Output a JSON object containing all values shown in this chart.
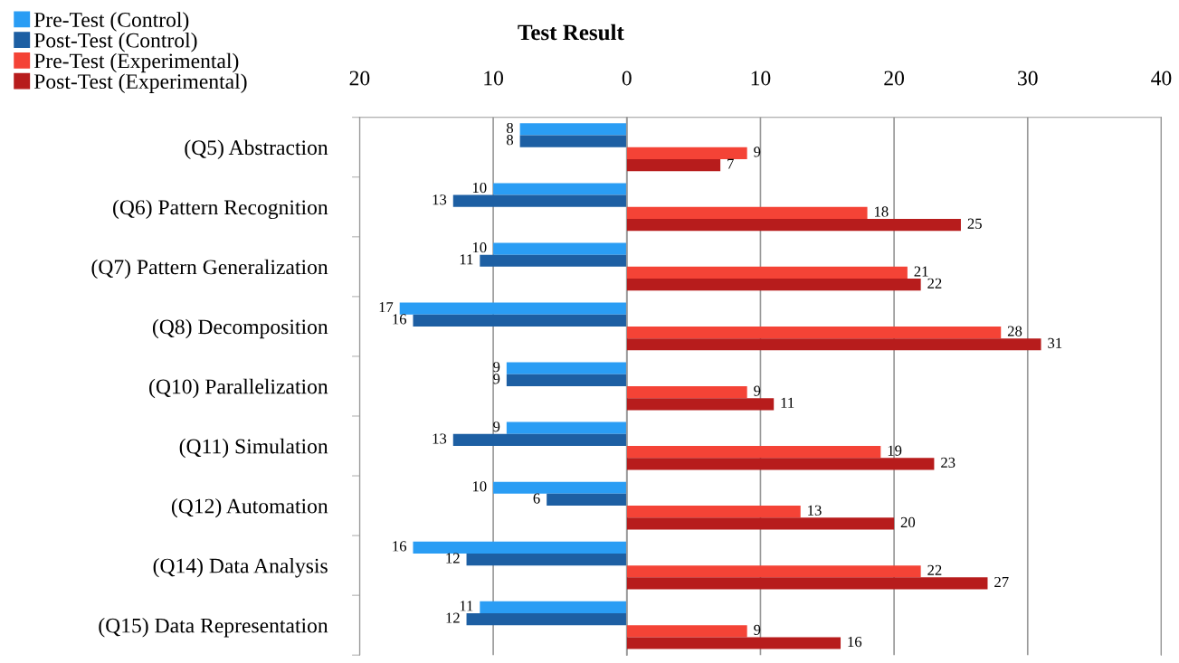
{
  "chart_data": [
    {
      "type": "bar",
      "orientation": "horizontal",
      "title": "Test Result",
      "categories": [
        "(Q5) Abstraction",
        "(Q6) Pattern Recognition",
        "(Q7) Pattern Generalization",
        "(Q8) Decomposition",
        "(Q10) Parallelization",
        "(Q11) Simulation",
        "(Q12) Automation",
        "(Q14) Data Analysis",
        "(Q15) Data Representation"
      ],
      "series": [
        {
          "name": "Pre-Test (Control)",
          "color": "#2a9df4",
          "values": [
            8,
            10,
            10,
            17,
            9,
            9,
            10,
            16,
            11
          ]
        },
        {
          "name": "Post-Test (Control)",
          "color": "#1d5fa3",
          "values": [
            8,
            13,
            11,
            16,
            9,
            13,
            6,
            12,
            12
          ]
        }
      ],
      "xlim": [
        20,
        0
      ],
      "xticks": [
        20,
        10,
        0
      ],
      "grid": "x",
      "legend": "top left",
      "data_labels": true
    },
    {
      "type": "bar",
      "orientation": "horizontal",
      "series": [
        {
          "name": "Pre-Test (Experimental)",
          "color": "#f44336",
          "values": [
            9,
            18,
            21,
            28,
            9,
            19,
            13,
            22,
            9
          ]
        },
        {
          "name": "Post-Test (Experimental)",
          "color": "#b71c1c",
          "values": [
            7,
            25,
            22,
            31,
            11,
            23,
            20,
            27,
            16
          ]
        }
      ],
      "xlim": [
        0,
        40
      ],
      "xticks": [
        {
          "value": 0,
          "label": null
        },
        10,
        20,
        30,
        40
      ],
      "grid": "x",
      "legend": "top left",
      "data_labels": true,
      "tick_labels": "x"
    }
  ]
}
